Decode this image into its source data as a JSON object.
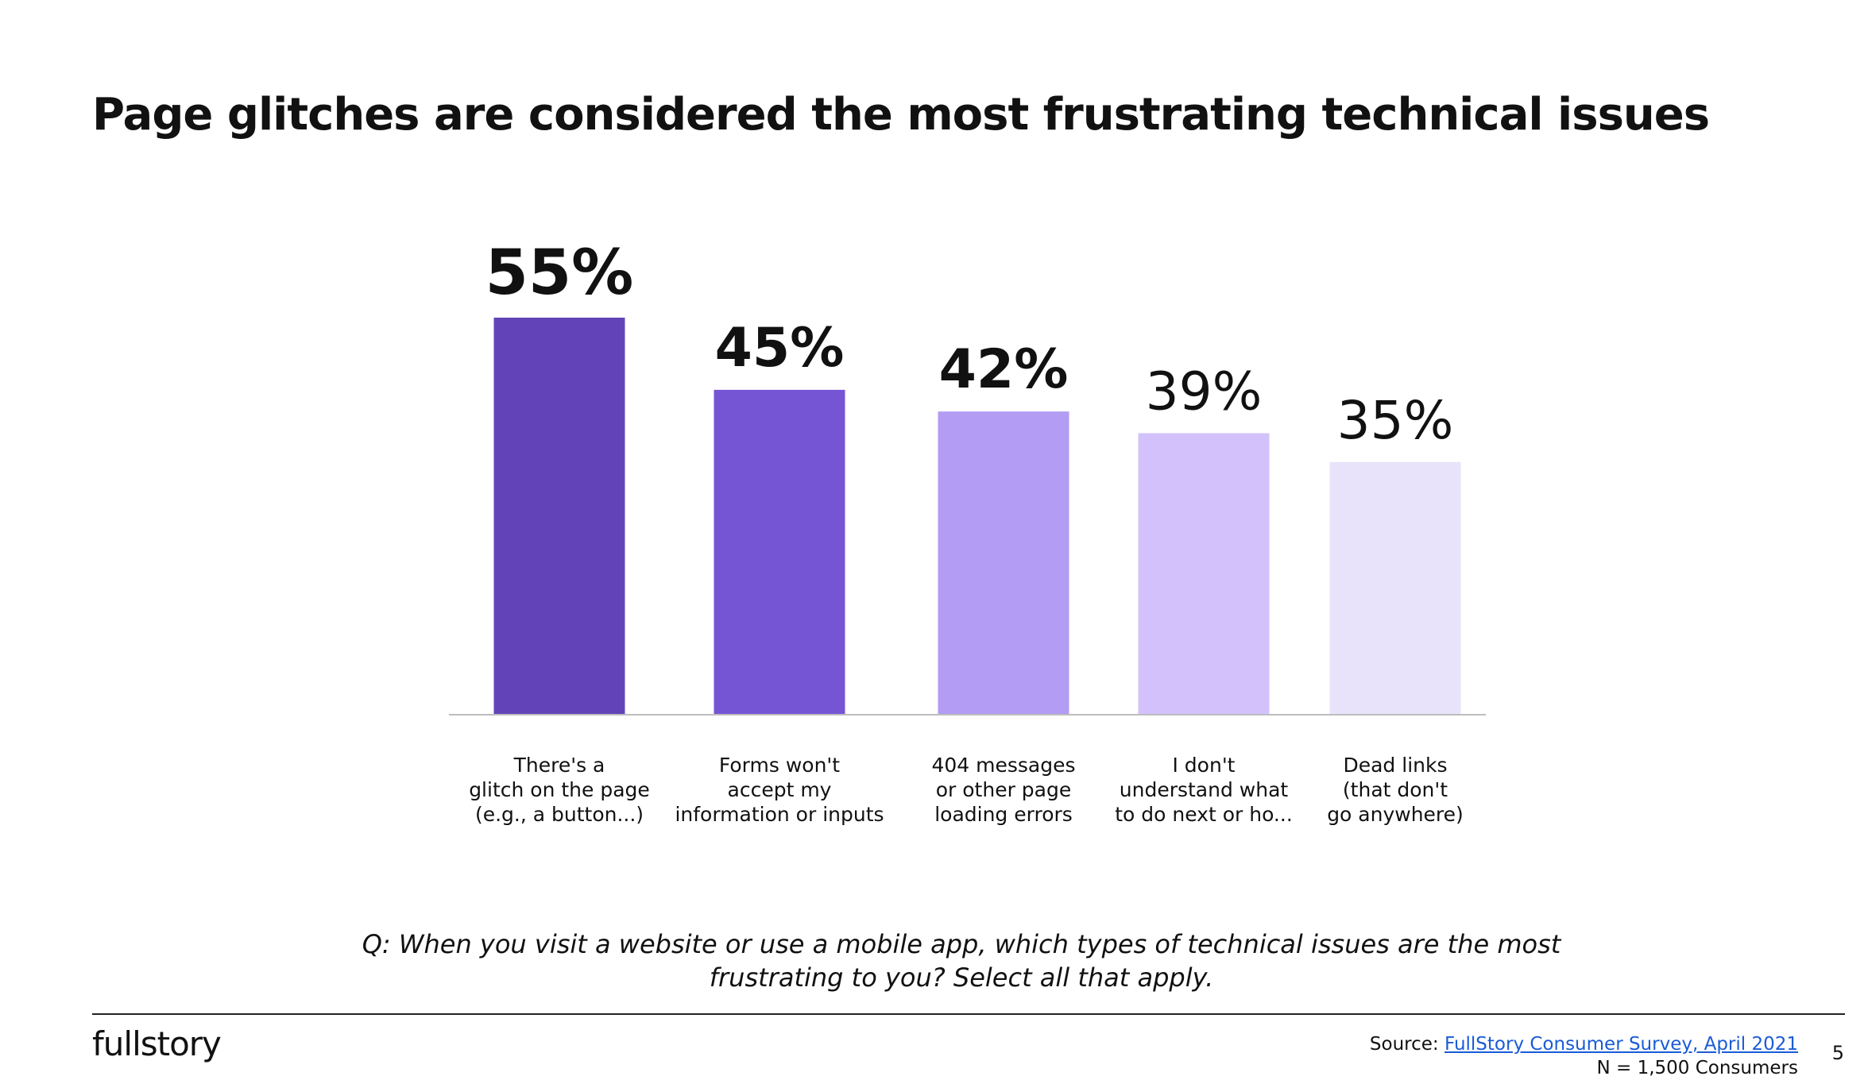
{
  "slide": {
    "title": "Page glitches are considered the most frustrating technical issues",
    "question_line1": "Q: When you visit a website or use a mobile app, which types of technical issues are the most",
    "question_line2": "frustrating to you? Select all that apply.",
    "logo": "fullstory",
    "source_prefix": "Source: ",
    "source_link": "FullStory Consumer Survey, April 2021",
    "sample": "N = 1,500 Consumers",
    "page_number": "5"
  },
  "chart_data": {
    "type": "bar",
    "title": "",
    "xlabel": "",
    "ylabel": "",
    "ylim": [
      0,
      55
    ],
    "categories": [
      [
        "There's a",
        "glitch on the page",
        "(e.g., a button...)"
      ],
      [
        "Forms won't",
        "accept my",
        "information or inputs"
      ],
      [
        "404 messages",
        "or other page",
        "loading errors"
      ],
      [
        "I don't",
        "understand what",
        "to do next or ho..."
      ],
      [
        "Dead links",
        "(that don't",
        "go anywhere)"
      ]
    ],
    "values": [
      55,
      45,
      42,
      39,
      35
    ],
    "value_labels": [
      "55%",
      "45%",
      "42%",
      "39%",
      "35%"
    ],
    "colors": [
      "#6244b8",
      "#7555d4",
      "#b39cf4",
      "#d3c1fb",
      "#e8e3fa"
    ]
  }
}
